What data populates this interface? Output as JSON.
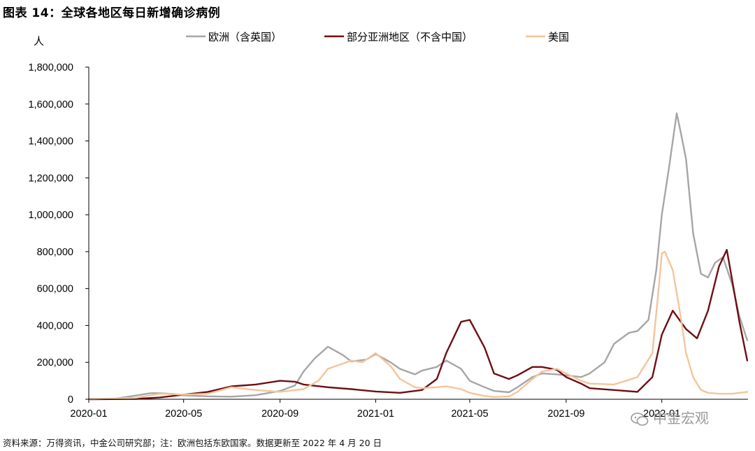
{
  "title": "图表 14：全球各地区每日新增确诊病例",
  "source_note": "资料来源：万得资讯，中金公司研究部；注：欧洲包括东欧国家。数据更新至 2022 年 4 月 20 日",
  "watermark": "中金宏观",
  "watermark_icon": "wechat-icon",
  "colors": {
    "europe": "#a6a6a6",
    "asia": "#6e0f14",
    "usa": "#f5c49a",
    "axis": "#000000"
  },
  "chart_data": {
    "type": "line",
    "title": "图表 14：全球各地区每日新增确诊病例",
    "ylabel": "人",
    "xlabel": "",
    "ylim": [
      0,
      1800000
    ],
    "y_ticks": [
      0,
      200000,
      400000,
      600000,
      800000,
      1000000,
      1200000,
      1400000,
      1600000,
      1800000
    ],
    "y_tick_labels": [
      "0",
      "200,000",
      "400,000",
      "600,000",
      "800,000",
      "1,000,000",
      "1,200,000",
      "1,400,000",
      "1,600,000",
      "1,800,000"
    ],
    "x_ticks": [
      "2020-01",
      "2020-05",
      "2020-09",
      "2021-01",
      "2021-05",
      "2021-09",
      "2022-01"
    ],
    "xlim": [
      "2020-01",
      "2022-04"
    ],
    "legend_position": "top",
    "grid": false,
    "series": [
      {
        "name": "欧洲（含英国）",
        "color_key": "europe",
        "points": [
          [
            "2020-01",
            0
          ],
          [
            "2020-02",
            2000
          ],
          [
            "2020-03",
            20000
          ],
          [
            "2020-03-20",
            33000
          ],
          [
            "2020-04",
            33000
          ],
          [
            "2020-04-20",
            28000
          ],
          [
            "2020-05",
            21000
          ],
          [
            "2020-06",
            16000
          ],
          [
            "2020-07",
            14000
          ],
          [
            "2020-08",
            22000
          ],
          [
            "2020-09",
            45000
          ],
          [
            "2020-09-20",
            75000
          ],
          [
            "2020-10",
            150000
          ],
          [
            "2020-10-15",
            220000
          ],
          [
            "2020-11",
            285000
          ],
          [
            "2020-11-20",
            240000
          ],
          [
            "2020-12",
            205000
          ],
          [
            "2020-12-20",
            215000
          ],
          [
            "2021-01",
            245000
          ],
          [
            "2021-01-20",
            200000
          ],
          [
            "2021-02",
            165000
          ],
          [
            "2021-02-20",
            135000
          ],
          [
            "2021-03",
            155000
          ],
          [
            "2021-03-20",
            175000
          ],
          [
            "2021-04",
            210000
          ],
          [
            "2021-04-20",
            165000
          ],
          [
            "2021-05",
            100000
          ],
          [
            "2021-05-20",
            65000
          ],
          [
            "2021-06",
            45000
          ],
          [
            "2021-06-20",
            38000
          ],
          [
            "2021-07",
            65000
          ],
          [
            "2021-07-20",
            120000
          ],
          [
            "2021-08",
            140000
          ],
          [
            "2021-08-20",
            135000
          ],
          [
            "2021-09",
            130000
          ],
          [
            "2021-09-20",
            120000
          ],
          [
            "2021-10",
            140000
          ],
          [
            "2021-10-20",
            200000
          ],
          [
            "2021-11",
            300000
          ],
          [
            "2021-11-20",
            360000
          ],
          [
            "2021-12",
            370000
          ],
          [
            "2021-12-15",
            430000
          ],
          [
            "2021-12-25",
            700000
          ],
          [
            "2022-01",
            1000000
          ],
          [
            "2022-01-10",
            1250000
          ],
          [
            "2022-01-20",
            1550000
          ],
          [
            "2022-01-25",
            1450000
          ],
          [
            "2022-02",
            1300000
          ],
          [
            "2022-02-10",
            900000
          ],
          [
            "2022-02-20",
            680000
          ],
          [
            "2022-03",
            660000
          ],
          [
            "2022-03-10",
            740000
          ],
          [
            "2022-03-20",
            770000
          ],
          [
            "2022-04",
            620000
          ],
          [
            "2022-04-10",
            450000
          ],
          [
            "2022-04-20",
            320000
          ]
        ]
      },
      {
        "name": "部分亚洲地区（不含中国）",
        "color_key": "asia",
        "points": [
          [
            "2020-01",
            0
          ],
          [
            "2020-03",
            2000
          ],
          [
            "2020-04",
            10000
          ],
          [
            "2020-05",
            25000
          ],
          [
            "2020-06",
            40000
          ],
          [
            "2020-07",
            70000
          ],
          [
            "2020-08",
            80000
          ],
          [
            "2020-09",
            100000
          ],
          [
            "2020-09-20",
            95000
          ],
          [
            "2020-10",
            80000
          ],
          [
            "2020-11",
            65000
          ],
          [
            "2020-12",
            55000
          ],
          [
            "2021-01",
            42000
          ],
          [
            "2021-02",
            35000
          ],
          [
            "2021-03",
            50000
          ],
          [
            "2021-03-20",
            110000
          ],
          [
            "2021-04",
            250000
          ],
          [
            "2021-04-20",
            420000
          ],
          [
            "2021-05",
            430000
          ],
          [
            "2021-05-20",
            280000
          ],
          [
            "2021-06",
            140000
          ],
          [
            "2021-06-20",
            110000
          ],
          [
            "2021-07",
            130000
          ],
          [
            "2021-07-20",
            175000
          ],
          [
            "2021-08",
            175000
          ],
          [
            "2021-08-20",
            160000
          ],
          [
            "2021-09",
            120000
          ],
          [
            "2021-09-20",
            85000
          ],
          [
            "2021-10",
            60000
          ],
          [
            "2021-11",
            50000
          ],
          [
            "2021-12",
            40000
          ],
          [
            "2021-12-20",
            120000
          ],
          [
            "2022-01",
            350000
          ],
          [
            "2022-01-15",
            480000
          ],
          [
            "2022-02",
            380000
          ],
          [
            "2022-02-15",
            330000
          ],
          [
            "2022-03",
            480000
          ],
          [
            "2022-03-15",
            720000
          ],
          [
            "2022-03-25",
            810000
          ],
          [
            "2022-04",
            640000
          ],
          [
            "2022-04-10",
            420000
          ],
          [
            "2022-04-20",
            210000
          ]
        ]
      },
      {
        "name": "美国",
        "color_key": "usa",
        "points": [
          [
            "2020-01",
            0
          ],
          [
            "2020-03",
            8000
          ],
          [
            "2020-04",
            30000
          ],
          [
            "2020-05",
            25000
          ],
          [
            "2020-06",
            30000
          ],
          [
            "2020-07",
            65000
          ],
          [
            "2020-08",
            50000
          ],
          [
            "2020-09",
            40000
          ],
          [
            "2020-10",
            55000
          ],
          [
            "2020-10-20",
            100000
          ],
          [
            "2020-11",
            165000
          ],
          [
            "2020-12",
            210000
          ],
          [
            "2020-12-15",
            200000
          ],
          [
            "2021-01",
            250000
          ],
          [
            "2021-01-20",
            180000
          ],
          [
            "2021-02",
            110000
          ],
          [
            "2021-02-20",
            65000
          ],
          [
            "2021-03",
            60000
          ],
          [
            "2021-03-20",
            65000
          ],
          [
            "2021-04",
            70000
          ],
          [
            "2021-04-20",
            55000
          ],
          [
            "2021-05",
            35000
          ],
          [
            "2021-05-20",
            18000
          ],
          [
            "2021-06",
            12000
          ],
          [
            "2021-06-20",
            15000
          ],
          [
            "2021-07",
            40000
          ],
          [
            "2021-07-20",
            110000
          ],
          [
            "2021-08",
            150000
          ],
          [
            "2021-08-20",
            165000
          ],
          [
            "2021-09",
            140000
          ],
          [
            "2021-09-20",
            100000
          ],
          [
            "2021-10",
            85000
          ],
          [
            "2021-11",
            80000
          ],
          [
            "2021-11-20",
            105000
          ],
          [
            "2021-12",
            120000
          ],
          [
            "2021-12-20",
            250000
          ],
          [
            "2021-12-28",
            600000
          ],
          [
            "2022-01",
            790000
          ],
          [
            "2022-01-05",
            800000
          ],
          [
            "2022-01-15",
            700000
          ],
          [
            "2022-01-25",
            450000
          ],
          [
            "2022-02",
            250000
          ],
          [
            "2022-02-10",
            120000
          ],
          [
            "2022-02-20",
            50000
          ],
          [
            "2022-03",
            35000
          ],
          [
            "2022-03-15",
            30000
          ],
          [
            "2022-04",
            30000
          ],
          [
            "2022-04-20",
            40000
          ]
        ]
      }
    ]
  }
}
